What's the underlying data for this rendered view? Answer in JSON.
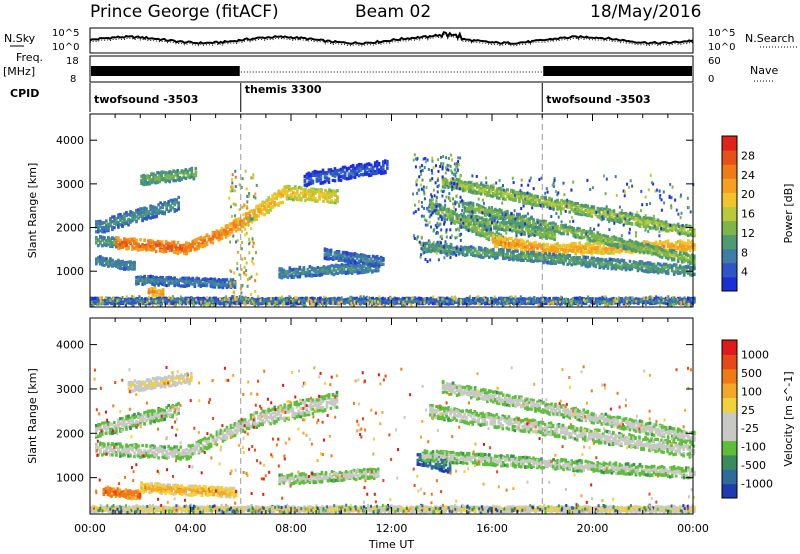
{
  "header": {
    "station": "Prince George (fitACF)",
    "beam": "Beam 02",
    "date": "18/May/2016"
  },
  "top_panel_labels": {
    "nsky": "N.Sky",
    "nsearch": "N.Search",
    "freq": "Freq.",
    "mhz": "[MHz]",
    "nave": "Nave",
    "cpid": "CPID",
    "left_axis_1": [
      "10^5",
      "10^0"
    ],
    "right_axis_1": [
      "10^5",
      "10^0"
    ],
    "left_axis_2": [
      "18",
      "8"
    ],
    "right_axis_2": [
      "60",
      "0"
    ]
  },
  "cpid_segments": [
    {
      "label": "twofsound -3503",
      "start": 0,
      "end": 6
    },
    {
      "label": "themis 3300",
      "start": 6,
      "end": 18
    },
    {
      "label": "twofsound -3503",
      "start": 18,
      "end": 24
    }
  ],
  "chart_data": [
    {
      "type": "heatmap",
      "quantity": "Power",
      "ylabel": "Slant Range [km]",
      "ylim": [
        180,
        4600
      ],
      "yticks": [
        1000,
        2000,
        3000,
        4000
      ],
      "xlim": [
        0,
        24
      ],
      "colorbar": {
        "title": "Power [dB]",
        "ticks": [
          "4",
          "8",
          "12",
          "16",
          "20",
          "24",
          "28"
        ],
        "colors": [
          "#1c2fd6",
          "#2d55c8",
          "#3f7ca8",
          "#4f9a70",
          "#7cb64a",
          "#b8c93a",
          "#f0c42a",
          "#f5a020",
          "#f07a18",
          "#e8501a",
          "#e02418"
        ]
      },
      "bands": [
        {
          "x0": 0.2,
          "x1": 1.0,
          "r0": 1700,
          "r1": 1650,
          "w": 220,
          "v": 0.35
        },
        {
          "x0": 1.0,
          "x1": 2.5,
          "r0": 1650,
          "r1": 1580,
          "w": 250,
          "v": 0.88
        },
        {
          "x0": 2.5,
          "x1": 3.8,
          "r0": 1580,
          "r1": 1520,
          "w": 260,
          "v": 0.9
        },
        {
          "x0": 3.8,
          "x1": 5.2,
          "r0": 1520,
          "r1": 1850,
          "w": 260,
          "v": 0.85
        },
        {
          "x0": 5.2,
          "x1": 6.5,
          "r0": 1850,
          "r1": 2300,
          "w": 280,
          "v": 0.8
        },
        {
          "x0": 6.5,
          "x1": 7.8,
          "r0": 2300,
          "r1": 2800,
          "w": 340,
          "v": 0.7
        },
        {
          "x0": 7.8,
          "x1": 9.8,
          "r0": 2800,
          "r1": 2700,
          "w": 300,
          "v": 0.62
        },
        {
          "x0": 0.2,
          "x1": 3.5,
          "r0": 2000,
          "r1": 2550,
          "w": 300,
          "v": 0.3
        },
        {
          "x0": 2.0,
          "x1": 4.2,
          "r0": 3100,
          "r1": 3250,
          "w": 250,
          "v": 0.4
        },
        {
          "x0": 0.2,
          "x1": 1.8,
          "r0": 1250,
          "r1": 1100,
          "w": 200,
          "v": 0.3
        },
        {
          "x0": 1.8,
          "x1": 5.8,
          "r0": 800,
          "r1": 700,
          "w": 200,
          "v": 0.26
        },
        {
          "x0": 2.3,
          "x1": 2.9,
          "r0": 530,
          "r1": 500,
          "w": 180,
          "v": 0.78
        },
        {
          "x0": 7.5,
          "x1": 11.5,
          "r0": 950,
          "r1": 1100,
          "w": 220,
          "v": 0.3
        },
        {
          "x0": 9.3,
          "x1": 11.7,
          "r0": 1400,
          "r1": 1200,
          "w": 220,
          "v": 0.26
        },
        {
          "x0": 8.5,
          "x1": 11.8,
          "r0": 3100,
          "r1": 3400,
          "w": 300,
          "v": 0.16
        },
        {
          "x0": 13.5,
          "x1": 16.5,
          "r0": 2500,
          "r1": 1650,
          "w": 280,
          "v": 0.45
        },
        {
          "x0": 16.0,
          "x1": 18.0,
          "r0": 1700,
          "r1": 1500,
          "w": 260,
          "v": 0.75
        },
        {
          "x0": 18.0,
          "x1": 24.0,
          "r0": 1500,
          "r1": 1580,
          "w": 260,
          "v": 0.72
        },
        {
          "x0": 14.0,
          "x1": 24.0,
          "r0": 3050,
          "r1": 1900,
          "w": 240,
          "v": 0.5
        },
        {
          "x0": 14.8,
          "x1": 24.0,
          "r0": 2500,
          "r1": 1250,
          "w": 220,
          "v": 0.45
        },
        {
          "x0": 13.2,
          "x1": 24.0,
          "r0": 1550,
          "r1": 1000,
          "w": 220,
          "v": 0.36
        },
        {
          "x0": 15.0,
          "x1": 18.5,
          "r0": 2200,
          "r1": 1800,
          "w": 200,
          "v": 0.45
        },
        {
          "x0": 0.0,
          "x1": 24.0,
          "r0": 320,
          "r1": 320,
          "w": 130,
          "v": 0.22
        }
      ],
      "speckle": [
        {
          "x0": 12.8,
          "x1": 14.8,
          "r0": 1200,
          "r1": 3700,
          "n": 260,
          "v": 0.2
        },
        {
          "x0": 13.5,
          "x1": 24.0,
          "r0": 1800,
          "r1": 3200,
          "n": 260,
          "v": 0.2
        },
        {
          "x0": 5.5,
          "x1": 6.6,
          "r0": 300,
          "r1": 3300,
          "n": 120,
          "v": 0.5
        },
        {
          "x0": 0.0,
          "x1": 24.0,
          "r0": 200,
          "r1": 420,
          "n": 500,
          "v": 0.4
        }
      ]
    },
    {
      "type": "heatmap",
      "quantity": "Velocity",
      "ylabel": "Slant Range [km]",
      "ylim": [
        180,
        4600
      ],
      "yticks": [
        1000,
        2000,
        3000,
        4000
      ],
      "xlim": [
        0,
        24
      ],
      "xlabel": "Time UT",
      "xticks": [
        "00:00",
        "04:00",
        "08:00",
        "12:00",
        "16:00",
        "20:00",
        "00:00"
      ],
      "colorbar": {
        "title": "Velocity [m s^-1]",
        "ticks": [
          "1000",
          "500",
          "100",
          "25",
          "-25",
          "-100",
          "-500",
          "-1000"
        ],
        "colors": [
          "#1e3cb0",
          "#2e6a9a",
          "#3a8c5e",
          "#5cbe3a",
          "#c8c8c4",
          "#c8c8c4",
          "#f0d23a",
          "#f5a828",
          "#f07a14",
          "#e84818",
          "#e01a1a"
        ]
      },
      "bands": [
        {
          "x0": 0.2,
          "x1": 3.8,
          "r0": 1650,
          "r1": 1550,
          "w": 280,
          "v": 0.45
        },
        {
          "x0": 3.8,
          "x1": 6.5,
          "r0": 1550,
          "r1": 2300,
          "w": 300,
          "v": 0.45
        },
        {
          "x0": 6.5,
          "x1": 9.8,
          "r0": 2300,
          "r1": 2750,
          "w": 360,
          "v": 0.46
        },
        {
          "x0": 0.2,
          "x1": 3.5,
          "r0": 2050,
          "r1": 2550,
          "w": 300,
          "v": 0.44
        },
        {
          "x0": 1.5,
          "x1": 4.0,
          "r0": 3050,
          "r1": 3250,
          "w": 240,
          "v": 0.6
        },
        {
          "x0": 0.5,
          "x1": 2.0,
          "r0": 700,
          "r1": 600,
          "w": 200,
          "v": 0.88
        },
        {
          "x0": 2.0,
          "x1": 5.8,
          "r0": 780,
          "r1": 650,
          "w": 220,
          "v": 0.72
        },
        {
          "x0": 7.5,
          "x1": 11.5,
          "r0": 950,
          "r1": 1100,
          "w": 220,
          "v": 0.45
        },
        {
          "x0": 13.0,
          "x1": 14.3,
          "r0": 1450,
          "r1": 1250,
          "w": 300,
          "v": 0.18
        },
        {
          "x0": 13.5,
          "x1": 24.0,
          "r0": 2500,
          "r1": 1600,
          "w": 300,
          "v": 0.46
        },
        {
          "x0": 14.0,
          "x1": 24.0,
          "r0": 3050,
          "r1": 1900,
          "w": 260,
          "v": 0.46
        },
        {
          "x0": 13.2,
          "x1": 24.0,
          "r0": 1500,
          "r1": 1100,
          "w": 240,
          "v": 0.44
        },
        {
          "x0": 0.0,
          "x1": 24.0,
          "r0": 290,
          "r1": 290,
          "w": 110,
          "v": 0.64
        }
      ],
      "speckle": [
        {
          "x0": 0.0,
          "x1": 12.0,
          "r0": 200,
          "r1": 3500,
          "n": 260,
          "v": 0.8
        },
        {
          "x0": 12.0,
          "x1": 24.0,
          "r0": 200,
          "r1": 3500,
          "n": 150,
          "v": 0.7
        },
        {
          "x0": 0.0,
          "x1": 24.0,
          "r0": 200,
          "r1": 380,
          "n": 400,
          "v": 0.3
        }
      ]
    }
  ]
}
